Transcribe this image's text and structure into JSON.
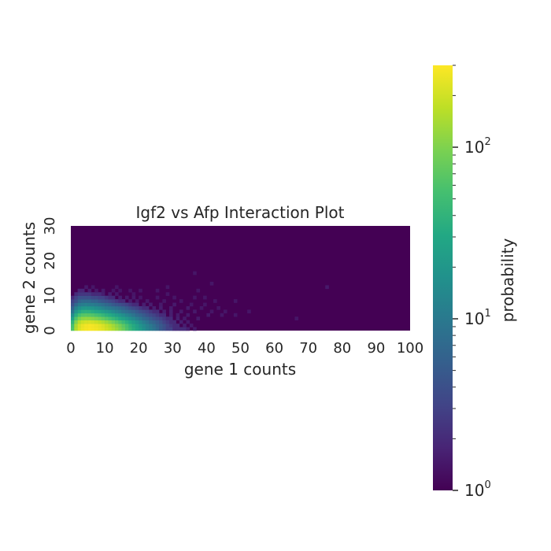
{
  "chart_data": {
    "type": "heatmap",
    "title": "Igf2 vs Afp Interaction Plot",
    "xlabel": "gene 1 counts",
    "ylabel": "gene 2 counts",
    "xlim": [
      0,
      100
    ],
    "ylim": [
      0,
      30
    ],
    "x_ticks": [
      "0",
      "10",
      "20",
      "30",
      "40",
      "50",
      "60",
      "70",
      "80",
      "90",
      "100"
    ],
    "y_ticks": [
      "0",
      "10",
      "20",
      "30"
    ],
    "colorbar": {
      "label": "probability",
      "scale": "log",
      "range": [
        1,
        300
      ],
      "tick_labels": [
        {
          "base": "10",
          "exp": "0",
          "value": 1
        },
        {
          "base": "10",
          "exp": "1",
          "value": 10
        },
        {
          "base": "10",
          "exp": "2",
          "value": 100
        }
      ]
    },
    "colormap": "viridis",
    "background_value": 1,
    "bin_size": 1,
    "cells": [
      [
        0,
        0,
        60
      ],
      [
        1,
        0,
        150
      ],
      [
        2,
        0,
        220
      ],
      [
        3,
        0,
        260
      ],
      [
        4,
        0,
        280
      ],
      [
        5,
        0,
        290
      ],
      [
        6,
        0,
        280
      ],
      [
        7,
        0,
        270
      ],
      [
        8,
        0,
        250
      ],
      [
        9,
        0,
        230
      ],
      [
        10,
        0,
        200
      ],
      [
        11,
        0,
        175
      ],
      [
        12,
        0,
        150
      ],
      [
        13,
        0,
        125
      ],
      [
        14,
        0,
        100
      ],
      [
        15,
        0,
        80
      ],
      [
        16,
        0,
        60
      ],
      [
        17,
        0,
        45
      ],
      [
        18,
        0,
        35
      ],
      [
        19,
        0,
        28
      ],
      [
        20,
        0,
        22
      ],
      [
        21,
        0,
        17
      ],
      [
        22,
        0,
        13
      ],
      [
        23,
        0,
        11
      ],
      [
        24,
        0,
        9
      ],
      [
        25,
        0,
        7
      ],
      [
        26,
        0,
        5
      ],
      [
        27,
        0,
        4
      ],
      [
        28,
        0,
        3
      ],
      [
        29,
        0,
        3
      ],
      [
        30,
        0,
        2
      ],
      [
        31,
        0,
        2
      ],
      [
        32,
        0,
        2
      ],
      [
        33,
        0,
        2
      ],
      [
        34,
        0,
        1.6
      ],
      [
        36,
        0,
        1.5
      ],
      [
        0,
        1,
        55
      ],
      [
        1,
        1,
        140
      ],
      [
        2,
        1,
        210
      ],
      [
        3,
        1,
        250
      ],
      [
        4,
        1,
        275
      ],
      [
        5,
        1,
        285
      ],
      [
        6,
        1,
        275
      ],
      [
        7,
        1,
        260
      ],
      [
        8,
        1,
        240
      ],
      [
        9,
        1,
        215
      ],
      [
        10,
        1,
        185
      ],
      [
        11,
        1,
        160
      ],
      [
        12,
        1,
        135
      ],
      [
        13,
        1,
        110
      ],
      [
        14,
        1,
        90
      ],
      [
        15,
        1,
        70
      ],
      [
        16,
        1,
        55
      ],
      [
        17,
        1,
        40
      ],
      [
        18,
        1,
        32
      ],
      [
        19,
        1,
        25
      ],
      [
        20,
        1,
        19
      ],
      [
        21,
        1,
        15
      ],
      [
        22,
        1,
        12
      ],
      [
        23,
        1,
        10
      ],
      [
        24,
        1,
        8
      ],
      [
        25,
        1,
        6
      ],
      [
        26,
        1,
        5
      ],
      [
        27,
        1,
        4
      ],
      [
        28,
        1,
        3
      ],
      [
        29,
        1,
        2.5
      ],
      [
        30,
        1,
        2
      ],
      [
        31,
        1,
        2
      ],
      [
        33,
        1,
        1.6
      ],
      [
        35,
        1,
        1.5
      ],
      [
        0,
        2,
        40
      ],
      [
        1,
        2,
        100
      ],
      [
        2,
        2,
        160
      ],
      [
        3,
        2,
        190
      ],
      [
        4,
        2,
        205
      ],
      [
        5,
        2,
        210
      ],
      [
        6,
        2,
        200
      ],
      [
        7,
        2,
        185
      ],
      [
        8,
        2,
        165
      ],
      [
        9,
        2,
        145
      ],
      [
        10,
        2,
        125
      ],
      [
        11,
        2,
        105
      ],
      [
        12,
        2,
        88
      ],
      [
        13,
        2,
        72
      ],
      [
        14,
        2,
        58
      ],
      [
        15,
        2,
        46
      ],
      [
        16,
        2,
        36
      ],
      [
        17,
        2,
        29
      ],
      [
        18,
        2,
        23
      ],
      [
        19,
        2,
        18
      ],
      [
        20,
        2,
        14
      ],
      [
        21,
        2,
        11
      ],
      [
        22,
        2,
        9
      ],
      [
        23,
        2,
        7
      ],
      [
        24,
        2,
        6
      ],
      [
        25,
        2,
        5
      ],
      [
        26,
        2,
        4
      ],
      [
        27,
        2,
        3
      ],
      [
        28,
        2,
        2.5
      ],
      [
        29,
        2,
        2
      ],
      [
        30,
        2,
        2
      ],
      [
        32,
        2,
        1.6
      ],
      [
        34,
        2,
        1.5
      ],
      [
        0,
        3,
        25
      ],
      [
        1,
        3,
        60
      ],
      [
        2,
        3,
        95
      ],
      [
        3,
        3,
        115
      ],
      [
        4,
        3,
        120
      ],
      [
        5,
        3,
        118
      ],
      [
        6,
        3,
        110
      ],
      [
        7,
        3,
        100
      ],
      [
        8,
        3,
        88
      ],
      [
        9,
        3,
        76
      ],
      [
        10,
        3,
        65
      ],
      [
        11,
        3,
        55
      ],
      [
        12,
        3,
        46
      ],
      [
        13,
        3,
        38
      ],
      [
        14,
        3,
        31
      ],
      [
        15,
        3,
        26
      ],
      [
        16,
        3,
        21
      ],
      [
        17,
        3,
        17
      ],
      [
        18,
        3,
        14
      ],
      [
        19,
        3,
        11
      ],
      [
        20,
        3,
        9
      ],
      [
        21,
        3,
        7
      ],
      [
        22,
        3,
        6
      ],
      [
        23,
        3,
        5
      ],
      [
        24,
        3,
        4
      ],
      [
        25,
        3,
        3.5
      ],
      [
        26,
        3,
        3
      ],
      [
        27,
        3,
        2.5
      ],
      [
        28,
        3,
        2
      ],
      [
        29,
        3,
        2
      ],
      [
        31,
        3,
        1.6
      ],
      [
        33,
        3,
        1.5
      ],
      [
        37,
        3,
        1.5
      ],
      [
        0,
        4,
        15
      ],
      [
        1,
        4,
        35
      ],
      [
        2,
        4,
        55
      ],
      [
        3,
        4,
        65
      ],
      [
        4,
        4,
        68
      ],
      [
        5,
        4,
        66
      ],
      [
        6,
        4,
        62
      ],
      [
        7,
        4,
        56
      ],
      [
        8,
        4,
        50
      ],
      [
        9,
        4,
        43
      ],
      [
        10,
        4,
        37
      ],
      [
        11,
        4,
        32
      ],
      [
        12,
        4,
        27
      ],
      [
        13,
        4,
        23
      ],
      [
        14,
        4,
        19
      ],
      [
        15,
        4,
        16
      ],
      [
        16,
        4,
        13
      ],
      [
        17,
        4,
        11
      ],
      [
        18,
        4,
        9
      ],
      [
        19,
        4,
        7
      ],
      [
        20,
        4,
        6
      ],
      [
        21,
        4,
        5
      ],
      [
        22,
        4,
        4
      ],
      [
        23,
        4,
        3.5
      ],
      [
        24,
        4,
        3
      ],
      [
        25,
        4,
        2.5
      ],
      [
        26,
        4,
        2
      ],
      [
        27,
        4,
        2
      ],
      [
        29,
        4,
        1.6
      ],
      [
        31,
        4,
        1.5
      ],
      [
        34,
        4,
        1.5
      ],
      [
        40,
        4,
        1.5
      ],
      [
        44,
        4,
        1.4
      ],
      [
        48,
        4,
        1.4
      ],
      [
        0,
        5,
        9
      ],
      [
        1,
        5,
        20
      ],
      [
        2,
        5,
        30
      ],
      [
        3,
        5,
        36
      ],
      [
        4,
        5,
        38
      ],
      [
        5,
        5,
        37
      ],
      [
        6,
        5,
        34
      ],
      [
        7,
        5,
        31
      ],
      [
        8,
        5,
        28
      ],
      [
        9,
        5,
        24
      ],
      [
        10,
        5,
        21
      ],
      [
        11,
        5,
        18
      ],
      [
        12,
        5,
        15
      ],
      [
        13,
        5,
        13
      ],
      [
        14,
        5,
        11
      ],
      [
        15,
        5,
        9
      ],
      [
        16,
        5,
        8
      ],
      [
        17,
        5,
        7
      ],
      [
        18,
        5,
        6
      ],
      [
        19,
        5,
        5
      ],
      [
        20,
        5,
        4
      ],
      [
        21,
        5,
        3.5
      ],
      [
        22,
        5,
        3
      ],
      [
        23,
        5,
        2.5
      ],
      [
        24,
        5,
        2
      ],
      [
        25,
        5,
        2
      ],
      [
        27,
        5,
        1.6
      ],
      [
        29,
        5,
        1.6
      ],
      [
        32,
        5,
        1.5
      ],
      [
        36,
        5,
        1.5
      ],
      [
        41,
        5,
        1.4
      ],
      [
        45,
        5,
        1.4
      ],
      [
        0,
        6,
        6
      ],
      [
        1,
        6,
        12
      ],
      [
        2,
        6,
        17
      ],
      [
        3,
        6,
        20
      ],
      [
        4,
        6,
        21
      ],
      [
        5,
        6,
        20
      ],
      [
        6,
        6,
        19
      ],
      [
        7,
        6,
        17
      ],
      [
        8,
        6,
        15
      ],
      [
        9,
        6,
        13
      ],
      [
        10,
        6,
        11
      ],
      [
        11,
        6,
        10
      ],
      [
        12,
        6,
        9
      ],
      [
        13,
        6,
        8
      ],
      [
        14,
        6,
        7
      ],
      [
        15,
        6,
        6
      ],
      [
        16,
        6,
        5
      ],
      [
        17,
        6,
        4
      ],
      [
        18,
        6,
        3.5
      ],
      [
        19,
        6,
        3
      ],
      [
        20,
        6,
        2.5
      ],
      [
        21,
        6,
        2
      ],
      [
        22,
        6,
        2
      ],
      [
        24,
        6,
        1.6
      ],
      [
        26,
        6,
        1.6
      ],
      [
        29,
        6,
        1.5
      ],
      [
        34,
        6,
        1.5
      ],
      [
        38,
        6,
        1.4
      ],
      [
        43,
        6,
        1.4
      ],
      [
        0,
        7,
        4
      ],
      [
        1,
        7,
        7
      ],
      [
        2,
        7,
        10
      ],
      [
        3,
        7,
        11
      ],
      [
        4,
        7,
        12
      ],
      [
        5,
        7,
        11
      ],
      [
        6,
        7,
        11
      ],
      [
        7,
        7,
        10
      ],
      [
        8,
        7,
        9
      ],
      [
        9,
        7,
        8
      ],
      [
        10,
        7,
        7
      ],
      [
        11,
        7,
        6
      ],
      [
        12,
        7,
        5
      ],
      [
        13,
        7,
        4.5
      ],
      [
        14,
        7,
        4
      ],
      [
        15,
        7,
        3.5
      ],
      [
        16,
        7,
        3
      ],
      [
        17,
        7,
        2.5
      ],
      [
        18,
        7,
        2
      ],
      [
        19,
        7,
        2
      ],
      [
        21,
        7,
        1.6
      ],
      [
        23,
        7,
        1.6
      ],
      [
        26,
        7,
        1.5
      ],
      [
        30,
        7,
        1.5
      ],
      [
        35,
        7,
        1.4
      ],
      [
        39,
        7,
        1.4
      ],
      [
        0,
        8,
        3
      ],
      [
        1,
        8,
        4
      ],
      [
        2,
        8,
        6
      ],
      [
        3,
        8,
        7
      ],
      [
        4,
        8,
        7
      ],
      [
        5,
        8,
        7
      ],
      [
        6,
        8,
        6
      ],
      [
        7,
        8,
        6
      ],
      [
        8,
        8,
        5
      ],
      [
        9,
        8,
        4.5
      ],
      [
        10,
        8,
        4
      ],
      [
        11,
        8,
        3.5
      ],
      [
        12,
        8,
        3
      ],
      [
        13,
        8,
        2.5
      ],
      [
        14,
        8,
        2
      ],
      [
        15,
        8,
        2
      ],
      [
        17,
        8,
        1.6
      ],
      [
        19,
        8,
        1.5
      ],
      [
        22,
        8,
        1.5
      ],
      [
        27,
        8,
        1.4
      ],
      [
        32,
        8,
        1.4
      ],
      [
        42,
        8,
        1.4
      ],
      [
        48,
        8,
        1.4
      ],
      [
        0,
        9,
        2
      ],
      [
        1,
        9,
        3
      ],
      [
        2,
        9,
        4
      ],
      [
        3,
        9,
        4
      ],
      [
        4,
        9,
        4
      ],
      [
        5,
        9,
        4
      ],
      [
        6,
        9,
        3.5
      ],
      [
        7,
        9,
        3.5
      ],
      [
        8,
        9,
        3
      ],
      [
        9,
        9,
        3
      ],
      [
        10,
        9,
        2.5
      ],
      [
        11,
        9,
        2
      ],
      [
        12,
        9,
        2
      ],
      [
        14,
        9,
        1.6
      ],
      [
        16,
        9,
        1.5
      ],
      [
        18,
        9,
        1.5
      ],
      [
        20,
        9,
        1.4
      ],
      [
        25,
        9,
        1.4
      ],
      [
        30,
        9,
        1.4
      ],
      [
        36,
        9,
        1.4
      ],
      [
        39,
        9,
        1.4
      ],
      [
        1,
        10,
        2
      ],
      [
        2,
        10,
        2.5
      ],
      [
        3,
        10,
        2.5
      ],
      [
        4,
        10,
        2.5
      ],
      [
        5,
        10,
        2.5
      ],
      [
        6,
        10,
        2
      ],
      [
        7,
        10,
        2
      ],
      [
        8,
        10,
        2
      ],
      [
        9,
        10,
        1.6
      ],
      [
        11,
        10,
        1.6
      ],
      [
        13,
        10,
        1.5
      ],
      [
        18,
        10,
        1.4
      ],
      [
        28,
        10,
        1.4
      ],
      [
        2,
        11,
        1.8
      ],
      [
        3,
        11,
        1.8
      ],
      [
        5,
        11,
        1.6
      ],
      [
        7,
        11,
        1.5
      ],
      [
        9,
        11,
        1.5
      ],
      [
        12,
        11,
        1.4
      ],
      [
        14,
        11,
        1.4
      ],
      [
        17,
        11,
        1.4
      ],
      [
        20,
        11,
        1.4
      ],
      [
        25,
        11,
        1.4
      ],
      [
        37,
        11,
        1.4
      ],
      [
        75,
        12,
        1.5
      ],
      [
        4,
        12,
        1.5
      ],
      [
        6,
        12,
        1.4
      ],
      [
        13,
        12,
        1.4
      ],
      [
        28,
        12,
        1.4
      ],
      [
        41,
        13,
        1.4
      ],
      [
        36,
        16,
        1.4
      ],
      [
        66,
        3,
        1.4
      ],
      [
        52,
        5,
        1.4
      ]
    ]
  }
}
